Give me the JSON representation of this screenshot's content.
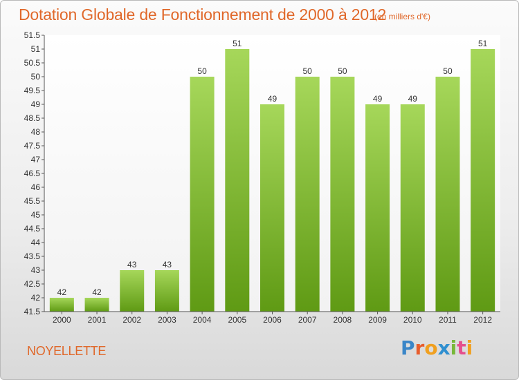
{
  "header": {
    "title": "Dotation Globale de Fonctionnement de 2000 à 2012",
    "subtitle": "(en milliers d'€)"
  },
  "footer": {
    "commune": "NOYELLETTE",
    "logo_letters": [
      "P",
      "r",
      "o",
      "x",
      "i",
      "t",
      "i"
    ],
    "logo_colors": [
      "#3a86c8",
      "#e85d2c",
      "#f0a020",
      "#2f8fd0",
      "#78b83a",
      "#e54f8d",
      "#f0a020"
    ]
  },
  "colors": {
    "bar_light": "#a6d75a",
    "bar_dark": "#5f9a14",
    "text_accent": "#e0682a"
  },
  "chart_data": {
    "type": "bar",
    "title": "Dotation Globale de Fonctionnement de 2000 à 2012",
    "subtitle": "(en milliers d'€)",
    "categories": [
      "2000",
      "2001",
      "2002",
      "2003",
      "2004",
      "2005",
      "2006",
      "2007",
      "2008",
      "2009",
      "2010",
      "2011",
      "2012"
    ],
    "values": [
      42,
      42,
      43,
      43,
      50,
      51,
      49,
      50,
      50,
      49,
      49,
      50,
      51
    ],
    "data_labels": [
      "42",
      "42",
      "43",
      "43",
      "50",
      "51",
      "49",
      "50",
      "50",
      "49",
      "49",
      "50",
      "51"
    ],
    "ylim": [
      41.5,
      51.5
    ],
    "yticks": [
      "41.5",
      "42",
      "42.5",
      "43",
      "43.5",
      "44",
      "44.5",
      "45",
      "45.5",
      "46",
      "46.5",
      "47",
      "47.5",
      "48",
      "48.5",
      "49",
      "49.5",
      "50",
      "50.5",
      "51",
      "51.5"
    ],
    "grid": false,
    "xlabel": "",
    "ylabel": ""
  }
}
